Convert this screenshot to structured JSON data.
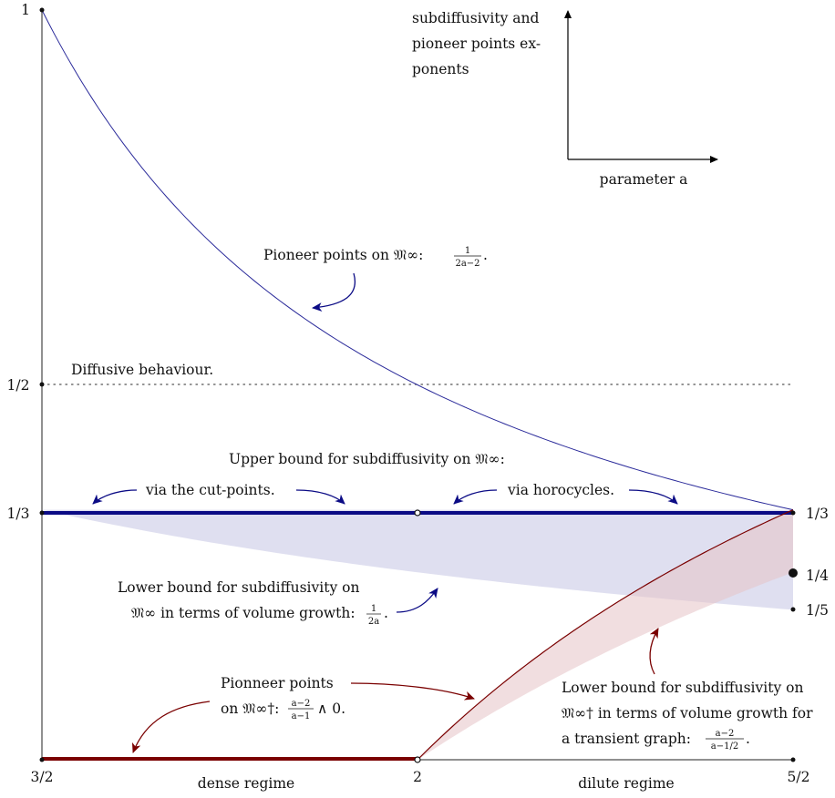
{
  "chart_data": {
    "type": "line",
    "xlim": [
      1.5,
      2.5
    ],
    "ylim": [
      0,
      1
    ],
    "x_ticks": [
      "3/2",
      "2",
      "5/2"
    ],
    "y_ticks_left": [
      "1",
      "1/2",
      "1/3"
    ],
    "y_ticks_right": [
      "1/3",
      "1/4",
      "1/5"
    ],
    "inset_axes": {
      "ylabel_lines": [
        "subdiffusivity and",
        "pioneer points ex-",
        "ponents"
      ],
      "xlabel": "parameter a"
    },
    "regimes": [
      "dense regime",
      "dilute regime"
    ],
    "series": [
      {
        "name": "Pioneer points on 𝔐∞: 1/(2a−2).",
        "color": "#2a2a9a",
        "x": [
          1.5,
          1.6,
          1.7,
          1.8,
          1.9,
          2.0,
          2.1,
          2.2,
          2.3,
          2.4,
          2.5
        ],
        "y": [
          1.0,
          0.833,
          0.714,
          0.625,
          0.556,
          0.5,
          0.455,
          0.417,
          0.385,
          0.357,
          0.333
        ]
      },
      {
        "name": "Diffusive behaviour.",
        "color": "#555555",
        "style": "dotted",
        "x": [
          1.5,
          2.5
        ],
        "y": [
          0.5,
          0.5
        ]
      },
      {
        "name": "Upper bound for subdiffusivity on 𝔐∞",
        "color": "#0b0b85",
        "x": [
          1.5,
          2.0,
          2.5
        ],
        "y": [
          0.3333,
          0.3333,
          0.3333
        ]
      },
      {
        "name": "Lower bound for subdiffusivity on 𝔐∞: 1/(2a)",
        "color": "#c9c9e6",
        "x": [
          1.5,
          1.6,
          1.7,
          1.8,
          1.9,
          2.0,
          2.1,
          2.2,
          2.3,
          2.4,
          2.5
        ],
        "y": [
          0.3333,
          0.3125,
          0.2941,
          0.2778,
          0.2632,
          0.25,
          0.2381,
          0.2273,
          0.2174,
          0.2083,
          0.2
        ]
      },
      {
        "name": "Pionneer points on 𝔐∞†: (a−2)/(a−1) ∧ 0",
        "color": "#7a0000",
        "x": [
          1.5,
          2.0,
          2.1,
          2.2,
          2.3,
          2.4,
          2.5
        ],
        "y": [
          0,
          0,
          0.0909,
          0.1667,
          0.2308,
          0.2857,
          0.3333
        ]
      },
      {
        "name": "Lower bound for subdiffusivity on 𝔐∞†: (a−2)/(a−1/2)",
        "color": "#e6c3c6",
        "x": [
          2.0,
          2.1,
          2.2,
          2.3,
          2.4,
          2.5
        ],
        "y": [
          0,
          0.0625,
          0.1176,
          0.1667,
          0.2105,
          0.25
        ]
      }
    ],
    "annotations": {
      "pioneer_title": "Pioneer points on 𝔐∞:",
      "pioneer_frac": [
        "1",
        "2a−2"
      ],
      "pioneer_tail": ".",
      "diffusive": "Diffusive behaviour.",
      "upper_bound": "Upper bound for subdiffusivity on 𝔐∞:",
      "via_cut": "via the cut-points.",
      "via_horo": "via horocycles.",
      "lower_blue_line1": "Lower bound for subdiffusivity on",
      "lower_blue_line2": "𝔐∞ in terms of volume growth:",
      "lower_blue_frac": [
        "1",
        "2a"
      ],
      "lower_blue_tail": ".",
      "pionneer_line1": "Pionneer points",
      "pionneer_line2": "on 𝔐∞†:",
      "pionneer_frac": [
        "a−2",
        "a−1"
      ],
      "pionneer_tail": "∧ 0.",
      "lower_red_line1": "Lower bound for subdiffusivity on",
      "lower_red_line2": "𝔐∞† in terms of volume growth for",
      "lower_red_line3": "a transient graph:",
      "lower_red_frac": [
        "a−2",
        "a−1/2"
      ],
      "lower_red_tail": "."
    }
  }
}
